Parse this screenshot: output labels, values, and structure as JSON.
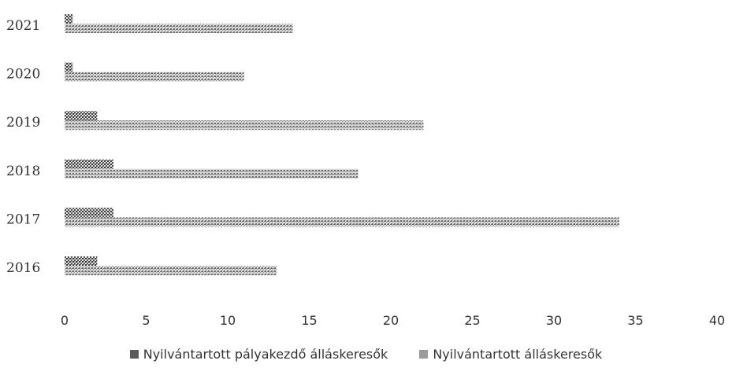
{
  "chart_data": {
    "type": "bar",
    "orientation": "horizontal",
    "stacked": false,
    "categories": [
      "2016",
      "2017",
      "2018",
      "2019",
      "2020",
      "2021"
    ],
    "series": [
      {
        "name": "Nyilvántartott pályakezdő álláskeresők",
        "values": [
          2,
          3,
          3,
          2,
          0.5,
          0.5
        ],
        "color": "#5a5a5a"
      },
      {
        "name": "Nyilvántartott álláskeresők",
        "values": [
          13,
          34,
          18,
          22,
          11,
          14
        ],
        "color": "#9a9a9a"
      }
    ],
    "xlim": [
      0,
      40
    ],
    "xticks": [
      "0",
      "5",
      "10",
      "15",
      "20",
      "25",
      "30",
      "35",
      "40"
    ],
    "title": "",
    "xlabel": "",
    "ylabel": "",
    "grid": false,
    "legend_position": "bottom"
  }
}
